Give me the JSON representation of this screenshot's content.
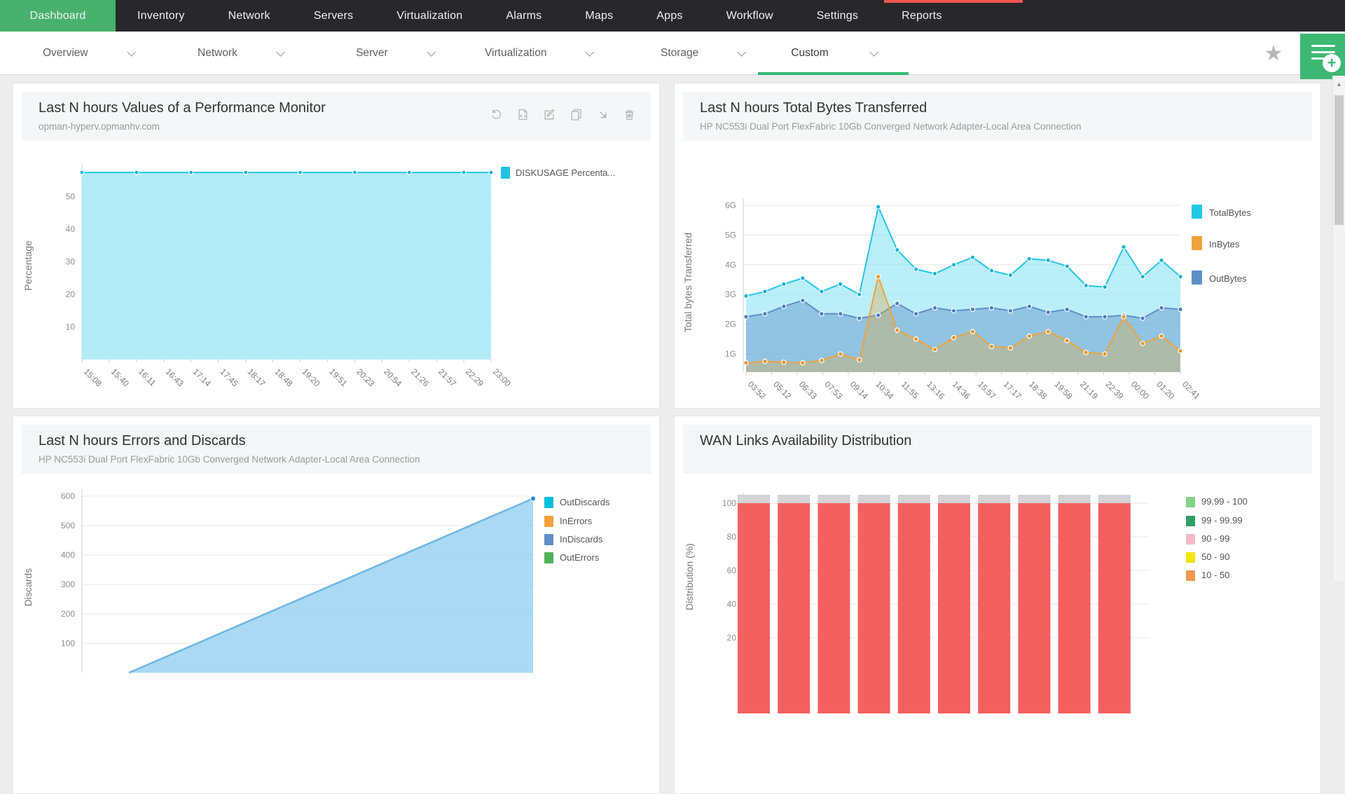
{
  "top_nav": {
    "tabs": [
      {
        "label": "Dashboard",
        "active": true
      },
      {
        "label": "Inventory"
      },
      {
        "label": "Network"
      },
      {
        "label": "Servers"
      },
      {
        "label": "Virtualization"
      },
      {
        "label": "Alarms"
      },
      {
        "label": "Maps"
      },
      {
        "label": "Apps"
      },
      {
        "label": "Workflow"
      },
      {
        "label": "Settings"
      },
      {
        "label": "Reports"
      }
    ],
    "colors": {
      "bar": "#28272a",
      "active_tab": "#47b16d",
      "loading_strip": "#f4564a"
    }
  },
  "sub_nav": {
    "items": [
      {
        "label": "Overview"
      },
      {
        "label": "Network"
      },
      {
        "label": "Server"
      },
      {
        "label": "Virtualization"
      },
      {
        "label": "Storage"
      },
      {
        "label": "Custom",
        "active": true
      }
    ],
    "active_underline_color": "#36b873",
    "star_icon": "★",
    "scroll_up_arrow": "▲"
  },
  "widgets": [
    {
      "title": "Last N hours Values of a Performance Monitor",
      "subtitle": "opman-hyperv.opmanhv.com",
      "toolbar_icons": [
        "refresh-icon",
        "report-icon",
        "edit-icon",
        "copy-icon",
        "resize-icon",
        "delete-icon"
      ]
    },
    {
      "title": "Last N hours Total Bytes Transferred",
      "subtitle": "HP NC553i Dual Port FlexFabric 10Gb Converged Network Adapter-Local Area Connection"
    },
    {
      "title": "Last N hours Errors and Discards",
      "subtitle": "HP NC553i Dual Port FlexFabric 10Gb Converged Network Adapter-Local Area Connection"
    },
    {
      "title": "WAN Links Availability Distribution",
      "subtitle": ""
    }
  ],
  "chart_data": [
    {
      "type": "area",
      "title": "Last N hours Values of a Performance Monitor",
      "ylabel": "Percentage",
      "yticks": [
        10,
        20,
        30,
        40,
        50
      ],
      "ylim": [
        0,
        60
      ],
      "grid": true,
      "legend_position": "right",
      "categories": [
        "15:08",
        "15:40",
        "16:11",
        "16:43",
        "17:14",
        "17:45",
        "18:17",
        "18:48",
        "19:20",
        "19:51",
        "20:23",
        "20:54",
        "21:26",
        "21:57",
        "22:29",
        "23:00"
      ],
      "series": [
        {
          "name": "DISKUSAGE Percenta...",
          "color": "#22c3e2",
          "line_color": "#2ac6e6",
          "fill": "rgba(164,233,246,0.85)",
          "dot_color": "#14b6d8",
          "values": [
            57.4,
            57.4,
            57.4,
            57.4,
            57.4,
            57.4,
            57.4,
            57.4,
            57.4,
            57.4,
            57.4,
            57.4,
            57.4,
            57.4,
            57.4,
            57.4
          ]
        }
      ]
    },
    {
      "type": "area",
      "title": "Last N hours Total Bytes Transferred",
      "ylabel": "Total bytes Transferred",
      "ytick_labels": [
        "1G",
        "2G",
        "3G",
        "4G",
        "5G",
        "6G"
      ],
      "ylim": [
        0.4,
        6.3
      ],
      "grid": true,
      "legend_position": "right",
      "categories": [
        "03:52",
        "05:12",
        "06:33",
        "07:53",
        "09:14",
        "10:34",
        "11:55",
        "13:16",
        "14:36",
        "15:57",
        "17:17",
        "18:38",
        "19:58",
        "21:19",
        "22:39",
        "00:00",
        "01:20",
        "02:41"
      ],
      "series": [
        {
          "name": "TotalBytes",
          "color": "#1fc8e7",
          "line_color": "#25c6e5",
          "fill": "rgba(130,224,242,0.55)",
          "dot_color": "#18b4d6",
          "values": [
            2.95,
            3.1,
            3.35,
            3.55,
            3.1,
            3.35,
            3.0,
            5.95,
            4.5,
            3.85,
            3.7,
            4.0,
            4.25,
            3.8,
            3.65,
            4.2,
            4.15,
            3.95,
            3.3,
            3.25,
            4.6,
            3.6,
            4.15,
            3.6
          ]
        },
        {
          "name": "InBytes",
          "color": "#f0a23c",
          "line_color": "#eea33e",
          "fill": "rgba(222,170,80,0.38)",
          "dot_color": "#e8962e",
          "values": [
            0.7,
            0.75,
            0.72,
            0.7,
            0.78,
            1.0,
            0.8,
            3.6,
            1.8,
            1.5,
            1.15,
            1.55,
            1.75,
            1.25,
            1.2,
            1.6,
            1.75,
            1.45,
            1.05,
            1.0,
            2.25,
            1.35,
            1.6,
            1.1
          ]
        },
        {
          "name": "OutBytes",
          "color": "#5f8fc7",
          "line_color": "#5f8fc7",
          "fill": "rgba(95,143,199,0.45)",
          "dot_color": "#4a80bf",
          "values": [
            2.25,
            2.35,
            2.6,
            2.8,
            2.35,
            2.35,
            2.2,
            2.3,
            2.7,
            2.35,
            2.55,
            2.45,
            2.5,
            2.55,
            2.45,
            2.6,
            2.4,
            2.5,
            2.25,
            2.25,
            2.3,
            2.2,
            2.55,
            2.5
          ]
        }
      ]
    },
    {
      "type": "area",
      "title": "Last N hours Errors and Discards",
      "ylabel": "Discards",
      "yticks": [
        400,
        500,
        600
      ],
      "grid": true,
      "legend_position": "right",
      "series": [
        {
          "name": "OutDiscards",
          "color": "#00c0dd",
          "line_color": "#6fb6e5",
          "fill": "rgba(154,210,241,0.85)",
          "dot_color": "#2f86c8",
          "visible_trend": {
            "start_value": 0,
            "end_value": 592
          }
        },
        {
          "name": "InErrors",
          "color": "#f0a23c"
        },
        {
          "name": "InDiscards",
          "color": "#5f8fc7"
        },
        {
          "name": "OutErrors",
          "color": "#53b257"
        }
      ]
    },
    {
      "type": "stacked-bar",
      "title": "WAN Links Availability Distribution",
      "ylabel": "Distribution (%)",
      "yticks": [
        60,
        80,
        100
      ],
      "grid": true,
      "legend_position": "right",
      "bars": {
        "count": 10,
        "value": 100,
        "cap_value": 5,
        "bar_color": "#f4605f",
        "cap_color": "#d3d3d3"
      },
      "legend": [
        {
          "label": "99.99 - 100",
          "color": "#85d385"
        },
        {
          "label": "99 - 99.99",
          "color": "#2f9e64"
        },
        {
          "label": "90 - 99",
          "color": "#f6b9c7"
        },
        {
          "label": "50 - 90",
          "color": "#f4e40c"
        },
        {
          "label": "10 - 50",
          "color": "#f0994f"
        }
      ]
    }
  ]
}
